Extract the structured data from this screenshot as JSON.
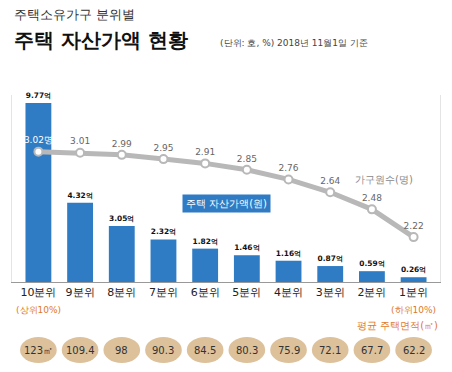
{
  "chart_data": {
    "type": "bar",
    "subtitle": "주택소유가구 분위별",
    "title": "주택 자산가액 현황",
    "note": "(단위: 호, %) 2018년 11월1일 기준",
    "categories": [
      "10분위",
      "9분위",
      "8분위",
      "7분위",
      "6분위",
      "5분위",
      "4분위",
      "3분위",
      "2분위",
      "1분위"
    ],
    "category_labels": [
      "(상위10%)",
      null,
      null,
      null,
      null,
      null,
      null,
      null,
      null,
      "(하위10%)"
    ],
    "series": [
      {
        "name": "주택 자산가액(원)",
        "type": "bar",
        "color": "#2f7cc4",
        "values": [
          9.77,
          4.32,
          3.05,
          2.32,
          1.82,
          1.46,
          1.16,
          0.87,
          0.59,
          0.26
        ],
        "value_labels": [
          "9.77억",
          "4.32억",
          "3.05억",
          "2.32억",
          "1.82억",
          "1.46억",
          "1.16억",
          "0.87억",
          "0.59억",
          "0.26억"
        ]
      },
      {
        "name": "가구원수(명)",
        "type": "line",
        "axis": "y2",
        "color": "#b8b8b8",
        "marker": "circle",
        "values": [
          3.02,
          3.01,
          2.99,
          2.95,
          2.91,
          2.85,
          2.76,
          2.64,
          2.48,
          2.22
        ],
        "value_labels": [
          "3.02명",
          "3.01",
          "2.99",
          "2.95",
          "2.91",
          "2.85",
          "2.76",
          "2.64",
          "2.48",
          "2.22"
        ]
      }
    ],
    "area": {
      "name": "평균 주택면적(㎡)",
      "color": "#dcc19b",
      "values": [
        123,
        109.4,
        98,
        90.3,
        84.5,
        80.3,
        75.9,
        72.1,
        67.7,
        62.2
      ],
      "value_labels": [
        "123㎡",
        "109.4",
        "98",
        "90.3",
        "84.5",
        "80.3",
        "75.9",
        "72.1",
        "67.7",
        "62.2"
      ]
    },
    "ylim": [
      0,
      10.2
    ],
    "y2lim": [
      1.8,
      3.55
    ],
    "data_labels": true,
    "tick_labels": "x",
    "grid": false
  }
}
